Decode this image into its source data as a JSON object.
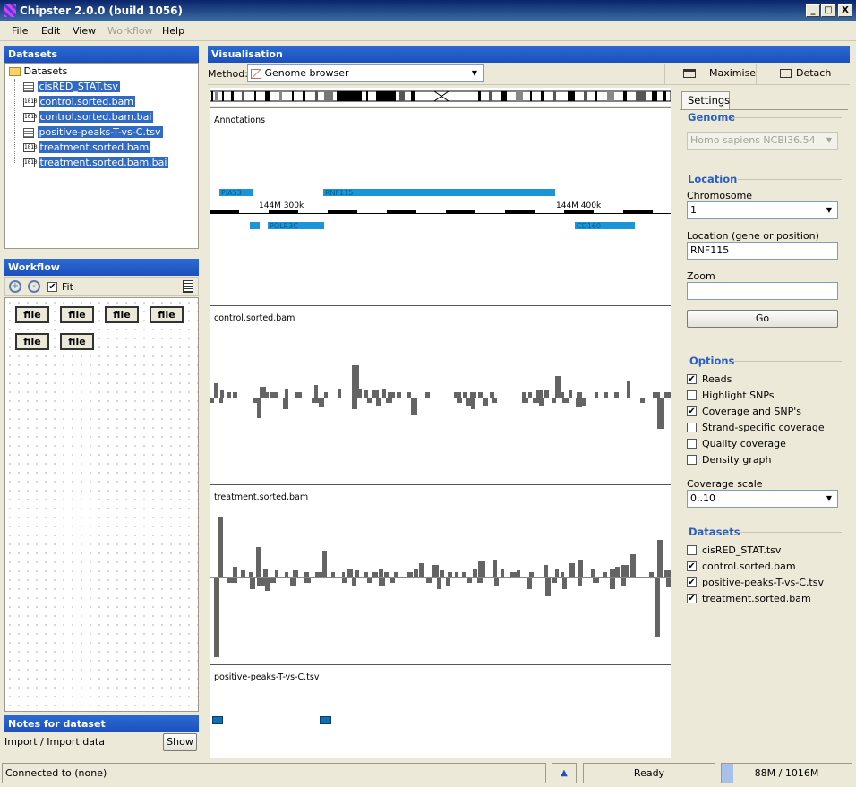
{
  "window": {
    "title": "Chipster 2.0.0 (build 1056)",
    "min": "_",
    "max": "□",
    "close": "X"
  },
  "menu": {
    "file": "File",
    "edit": "Edit",
    "view": "View",
    "workflow": "Workflow",
    "help": "Help"
  },
  "datasets": {
    "title": "Datasets",
    "root": "Datasets",
    "items": [
      {
        "name": "cisRED_STAT.tsv",
        "icon": "table-icon"
      },
      {
        "name": "control.sorted.bam",
        "icon": "binary-icon"
      },
      {
        "name": "control.sorted.bam.bai",
        "icon": "binary-icon"
      },
      {
        "name": "positive-peaks-T-vs-C.tsv",
        "icon": "table-icon"
      },
      {
        "name": "treatment.sorted.bam",
        "icon": "binary-icon"
      },
      {
        "name": "treatment.sorted.bam.bai",
        "icon": "binary-icon"
      }
    ]
  },
  "workflow": {
    "title": "Workflow",
    "fit_label": "Fit",
    "nodes": [
      "file",
      "file",
      "file",
      "file",
      "file",
      "file"
    ]
  },
  "notes": {
    "title": "Notes for dataset",
    "text": "Import / Import data",
    "show": "Show"
  },
  "visualisation": {
    "title": "Visualisation",
    "method_label": "Method:",
    "method_value": "Genome browser",
    "maximise": "Maximise",
    "detach": "Detach"
  },
  "tracks": {
    "annotations": {
      "title": "Annotations",
      "genes_top": [
        "PIAS3",
        "RNF115"
      ],
      "genes_bottom": [
        "POLR3C",
        "CD160"
      ],
      "ticks": [
        "144M 300k",
        "144M 400k"
      ]
    },
    "control": {
      "title": "control.sorted.bam"
    },
    "treatment": {
      "title": "treatment.sorted.bam"
    },
    "peaks": {
      "title": "positive-peaks-T-vs-C.tsv"
    }
  },
  "settings": {
    "tab": "Settings",
    "genome": {
      "title": "Genome",
      "value": "Homo sapiens NCBI36.54"
    },
    "location": {
      "title": "Location",
      "chromosome_label": "Chromosome",
      "chromosome_value": "1",
      "loc_label": "Location (gene or position)",
      "loc_value": "RNF115",
      "zoom_label": "Zoom",
      "zoom_value": "",
      "go": "Go"
    },
    "options": {
      "title": "Options",
      "items": [
        {
          "label": "Reads",
          "checked": "✔"
        },
        {
          "label": "Highlight SNPs",
          "checked": ""
        },
        {
          "label": "Coverage and SNP's",
          "checked": "✔"
        },
        {
          "label": "Strand-specific coverage",
          "checked": ""
        },
        {
          "label": "Quality coverage",
          "checked": ""
        },
        {
          "label": "Density graph",
          "checked": ""
        }
      ],
      "scale_label": "Coverage scale",
      "scale_value": "0..10"
    },
    "datasets": {
      "title": "Datasets",
      "items": [
        {
          "label": "cisRED_STAT.tsv",
          "checked": ""
        },
        {
          "label": "control.sorted.bam",
          "checked": "✔"
        },
        {
          "label": "positive-peaks-T-vs-C.tsv",
          "checked": "✔"
        },
        {
          "label": "treatment.sorted.bam",
          "checked": "✔"
        }
      ]
    }
  },
  "status": {
    "connection": "Connected to (none)",
    "state": "Ready",
    "memory": "88M / 1016M",
    "memory_fraction": 0.087
  }
}
